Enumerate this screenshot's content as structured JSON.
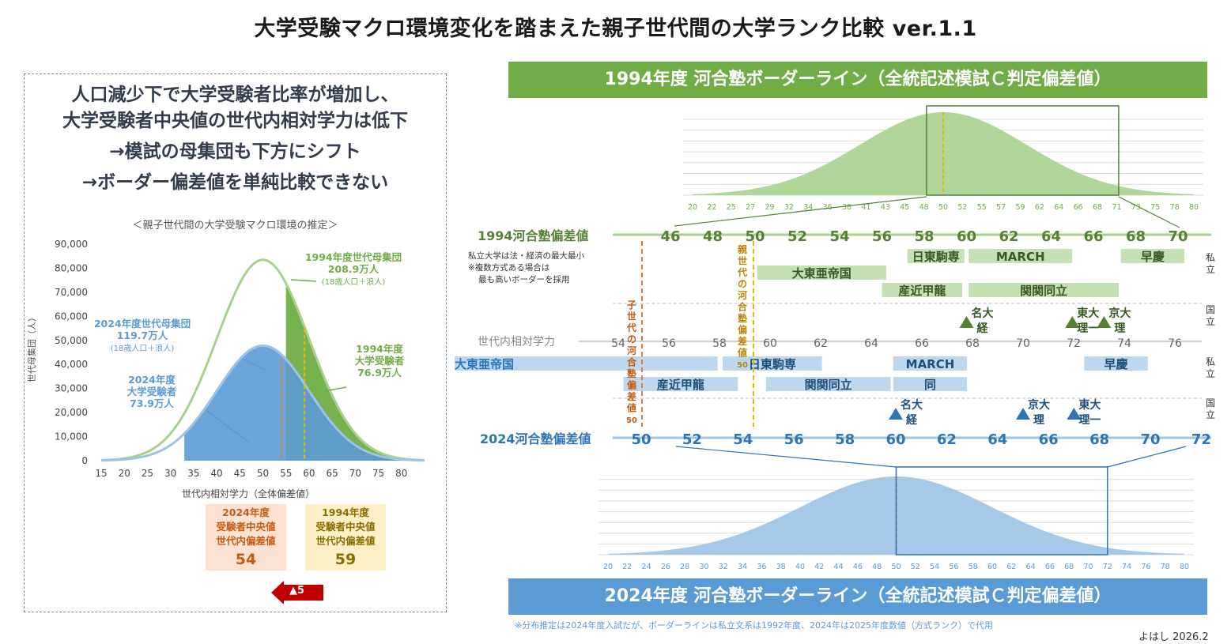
{
  "title": "大学受験マクロ環境変化を踏まえた親子世代間の大学ランク比較 ver.1.1",
  "headline": {
    "line1": "人口減少下で大学受験者比率が増加し、",
    "line2": "大学受験者中央値の世代内相対学力は低下",
    "line3": "→模試の母集団も下方にシフト",
    "line4": "→ボーダー偏差値を単純比較できない"
  },
  "chart_data": [
    {
      "type": "area",
      "title": "＜親子世代間の大学受験マクロ環境の推定＞",
      "xlabel": "世代内相対学力（全体偏差値）",
      "ylabel": "世代母集団（人）",
      "xlim": [
        15,
        85
      ],
      "ylim": [
        0,
        90000
      ],
      "x_ticks": [
        "15",
        "20",
        "25",
        "30",
        "35",
        "40",
        "45",
        "50",
        "55",
        "60",
        "65",
        "70",
        "75",
        "80"
      ],
      "y_ticks": [
        "0",
        "10,000",
        "20,000",
        "30,000",
        "40,000",
        "50,000",
        "60,000",
        "70,000",
        "80,000",
        "90,000"
      ],
      "grid": false,
      "series": [
        {
          "name": "1994年度世代母集団",
          "kind": "normal",
          "mean": 50,
          "sd": 10,
          "peak": 83500,
          "color": "#a9d18e"
        },
        {
          "name": "2024年度世代母集団",
          "kind": "normal",
          "mean": 50,
          "sd": 10,
          "peak": 47800,
          "color": "#9dc3e6"
        },
        {
          "name": "1994年度大学受験者",
          "kind": "truncated",
          "mean": 50,
          "sd": 10,
          "peak": 83500,
          "cutoff": 55,
          "color": "#70ad47"
        },
        {
          "name": "2024年度大学受験者",
          "kind": "truncated",
          "mean": 50,
          "sd": 10,
          "peak": 47800,
          "cutoff": 33,
          "color": "#5b9bd5"
        }
      ],
      "median_lines": [
        {
          "x": 54,
          "color": "#e07a3c"
        },
        {
          "x": 59,
          "color": "#e6b800"
        }
      ],
      "annotations": [
        {
          "lines": [
            "1994年度世代母集団",
            "208.9万人",
            "(18歳人口＋浪人)"
          ],
          "color": "#70ad47"
        },
        {
          "lines": [
            "2024年度世代母集団",
            "119.7万人",
            "(18歳人口＋浪人)"
          ],
          "color": "#5b9bd5"
        },
        {
          "lines": [
            "1994年度",
            "大学受験者",
            "76.9万人"
          ],
          "color": "#70ad47"
        },
        {
          "lines": [
            "2024年度",
            "大学受験者",
            "73.9万人"
          ],
          "color": "#5b9bd5"
        }
      ]
    },
    {
      "type": "area",
      "title": "1994年度 河合塾ボーダーライン（全統記述模試Ｃ判定偏差値）",
      "x_ticks": [
        "20",
        "22",
        "25",
        "27",
        "29",
        "32",
        "34",
        "36",
        "38",
        "41",
        "43",
        "45",
        "48",
        "50",
        "52",
        "55",
        "57",
        "59",
        "62",
        "64",
        "66",
        "68",
        "71",
        "73",
        "75",
        "78",
        "80"
      ],
      "mean": 50,
      "median": 50,
      "window": [
        48,
        71
      ],
      "color": "#a9d18e"
    },
    {
      "type": "area",
      "title": "2024年度 河合塾ボーダーライン（全統記述模試Ｃ判定偏差値）",
      "x_ticks": [
        "20",
        "22",
        "24",
        "26",
        "28",
        "30",
        "32",
        "34",
        "36",
        "38",
        "40",
        "42",
        "44",
        "46",
        "48",
        "50",
        "52",
        "54",
        "56",
        "58",
        "60",
        "62",
        "64",
        "66",
        "68",
        "70",
        "72",
        "74",
        "76",
        "78",
        "80"
      ],
      "mean": 50,
      "median": 50,
      "window": [
        50,
        72
      ],
      "color": "#9dc3e6"
    }
  ],
  "boxes": {
    "b2024": {
      "l1": "2024年度",
      "l2": "受験者中央値",
      "l3": "世代内偏差値",
      "value": "54"
    },
    "b1994": {
      "l1": "1994年度",
      "l2": "受験者中央値",
      "l3": "世代内偏差値",
      "value": "59"
    },
    "diff": "▲5"
  },
  "scale1994": {
    "label": "1994河合塾偏差値",
    "ticks": [
      "46",
      "48",
      "50",
      "52",
      "54",
      "56",
      "58",
      "60",
      "62",
      "64",
      "66",
      "68",
      "70"
    ],
    "first": 46,
    "step": 2
  },
  "scaleRel": {
    "label": "世代内相対学力",
    "ticks": [
      "54",
      "56",
      "58",
      "60",
      "62",
      "64",
      "66",
      "68",
      "70",
      "72",
      "74",
      "76"
    ],
    "first": 54,
    "step": 2
  },
  "scale2024": {
    "label": "2024河合塾偏差値",
    "ticks": [
      "50",
      "52",
      "54",
      "56",
      "58",
      "60",
      "62",
      "64",
      "66",
      "68",
      "70",
      "72"
    ],
    "first": 50,
    "step": 2
  },
  "note": {
    "line1": "私立大学は法・経済の最大最小",
    "line2": "※複数方式ある場合は",
    "line3": "最も高いボーダーを採用"
  },
  "side": {
    "shiritsu": "私立",
    "kokuritsu": "国立"
  },
  "bars1994": [
    {
      "label": "日東駒専",
      "from": 57.2,
      "to": 59.9
    },
    {
      "label": "MARCH",
      "from": 60.1,
      "to": 65.0
    },
    {
      "label": "早慶",
      "from": 67.3,
      "to": 70.3
    },
    {
      "label": "大東亜帝国",
      "from": 50.1,
      "to": 56.2
    },
    {
      "label": "産近甲龍",
      "from": 56.0,
      "to": 59.8
    },
    {
      "label": "関関同立",
      "from": 60.1,
      "to": 67.2
    }
  ],
  "bars2024": [
    {
      "label": "大東亜帝国",
      "from": 42.5,
      "to": 53.0
    },
    {
      "label": "日東駒専",
      "from": 53.2,
      "to": 57.1
    },
    {
      "label": "MARCH",
      "from": 59.9,
      "to": 62.8
    },
    {
      "label": "早慶",
      "from": 67.4,
      "to": 69.9
    },
    {
      "label": "産近甲龍",
      "from": 49.3,
      "to": 53.8
    },
    {
      "label": "関関同立",
      "from": 54.9,
      "to": 59.8
    },
    {
      "label": "同",
      "from": 59.9,
      "to": 62.8
    }
  ],
  "nat1994": [
    {
      "label1": "名大",
      "label2": "経",
      "at": 60.0
    },
    {
      "label1": "東大",
      "label2": "理一",
      "at": 65.0
    },
    {
      "label1": "京大",
      "label2": "理",
      "at": 66.5
    }
  ],
  "nat2024": [
    {
      "label1": "名大",
      "label2": "経",
      "at": 60.0
    },
    {
      "label1": "京大",
      "label2": "理",
      "at": 65.0
    },
    {
      "label1": "東大",
      "label2": "理一",
      "at": 67.0
    }
  ],
  "vlabels": {
    "child": "子世代の河合塾偏差値50",
    "parent": "親世代の河合塾偏差値50"
  },
  "footnote": "※分布推定は2024年度入試だが、ボーダーラインは私立文系は1992年度、2024年は2025年度数値（方式ランク）で代用",
  "author": "よはし 2026.2"
}
